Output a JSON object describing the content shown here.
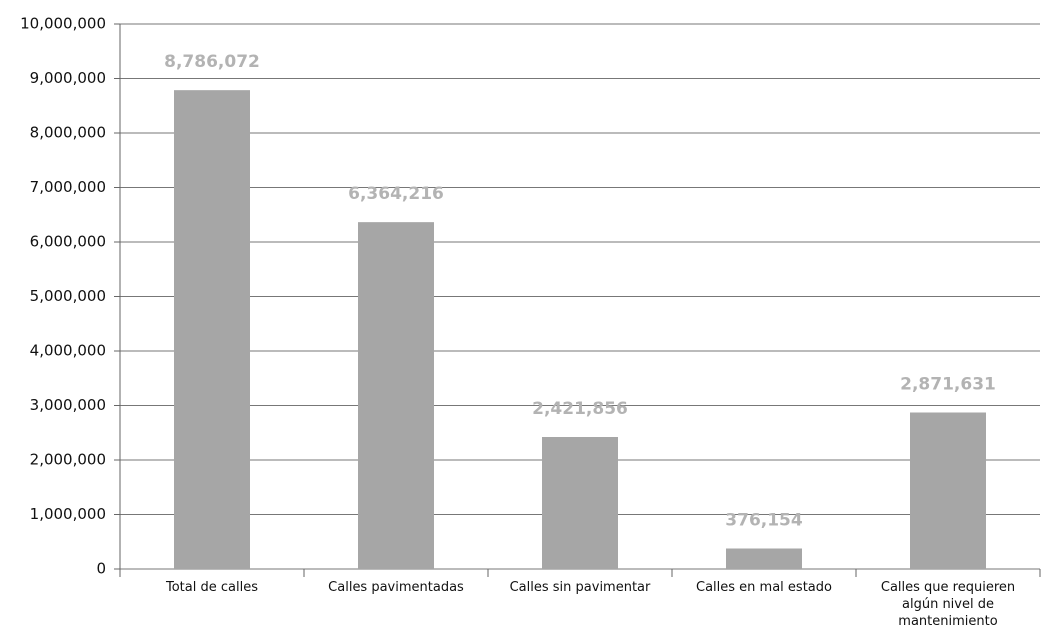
{
  "chart_data": {
    "type": "bar",
    "categories": [
      "Total de calles",
      "Calles pavimentadas",
      "Calles sin pavimentar",
      "Calles en mal estado",
      "Calles que requieren algún nivel de mantenimiento"
    ],
    "values": [
      8786072,
      6364216,
      2421856,
      376154,
      2871631
    ],
    "value_labels": [
      "8,786,072",
      "6,364,216",
      "2,421,856",
      "376,154",
      "2,871,631"
    ],
    "color": "#a6a6a6",
    "ylim": [
      0,
      10000000
    ],
    "yticks": [
      0,
      {
        "value": 1000000,
        "label": "1,000,000"
      },
      {
        "value": 2000000,
        "label": "2,000,000"
      },
      {
        "value": 3000000,
        "label": "3,000,000"
      },
      {
        "value": 4000000,
        "label": "4,000,000"
      },
      {
        "value": 5000000,
        "label": "5,000,000"
      },
      {
        "value": 6000000,
        "label": "6,000,000"
      },
      {
        "value": 7000000,
        "label": "7,000,000"
      },
      {
        "value": 8000000,
        "label": "8,000,000"
      },
      {
        "value": 9000000,
        "label": "9,000,000"
      },
      {
        "value": 10000000,
        "label": "10,000,000"
      }
    ],
    "grid": true
  }
}
